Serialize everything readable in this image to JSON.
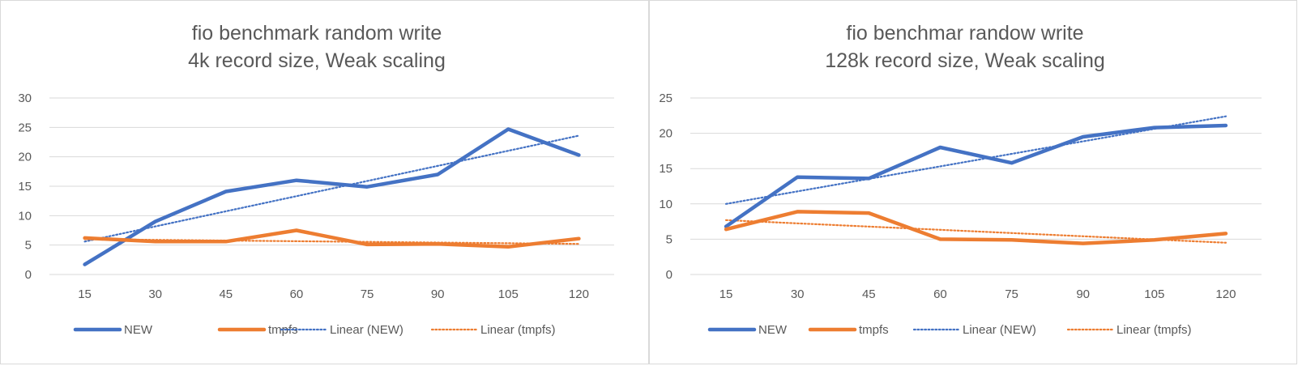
{
  "chart_data": [
    {
      "type": "line",
      "title_lines": [
        "fio benchmark random write",
        "4k record size, Weak scaling"
      ],
      "categories": [
        "15",
        "30",
        "45",
        "60",
        "75",
        "90",
        "105",
        "120"
      ],
      "ylim": [
        0,
        30
      ],
      "yticks": [
        "0",
        "5",
        "10",
        "15",
        "20",
        "25",
        "30"
      ],
      "grid": true,
      "legend_position": "bottom",
      "series": [
        {
          "name": "NEW",
          "color": "#4472C4",
          "values": [
            1.7,
            9.0,
            14.1,
            16.0,
            14.9,
            17.0,
            24.7,
            20.3
          ]
        },
        {
          "name": "tmpfs",
          "color": "#ED7D31",
          "values": [
            6.2,
            5.6,
            5.6,
            7.5,
            5.1,
            5.2,
            4.7,
            6.1
          ]
        }
      ],
      "trendlines": [
        {
          "name": "Linear  (NEW)",
          "color": "#4472C4",
          "start": 5.6,
          "end": 23.6
        },
        {
          "name": "Linear  (tmpfs)",
          "color": "#ED7D31",
          "start": 6.0,
          "end": 5.2
        }
      ]
    },
    {
      "type": "line",
      "title_lines": [
        "fio benchmar randow write",
        "128k record size, Weak scaling"
      ],
      "categories": [
        "15",
        "30",
        "45",
        "60",
        "75",
        "90",
        "105",
        "120"
      ],
      "ylim": [
        0,
        25
      ],
      "yticks": [
        "0",
        "5",
        "10",
        "15",
        "20",
        "25"
      ],
      "grid": true,
      "legend_position": "bottom",
      "series": [
        {
          "name": "NEW",
          "color": "#4472C4",
          "values": [
            6.8,
            13.8,
            13.6,
            18.0,
            15.8,
            19.5,
            20.8,
            21.1
          ]
        },
        {
          "name": "tmpfs",
          "color": "#ED7D31",
          "values": [
            6.4,
            8.9,
            8.7,
            5.0,
            4.9,
            4.4,
            4.9,
            5.8
          ]
        }
      ],
      "trendlines": [
        {
          "name": "Linear  (NEW)",
          "color": "#4472C4",
          "start": 10.0,
          "end": 22.4
        },
        {
          "name": "Linear  (tmpfs)",
          "color": "#ED7D31",
          "start": 7.7,
          "end": 4.5
        }
      ]
    }
  ]
}
